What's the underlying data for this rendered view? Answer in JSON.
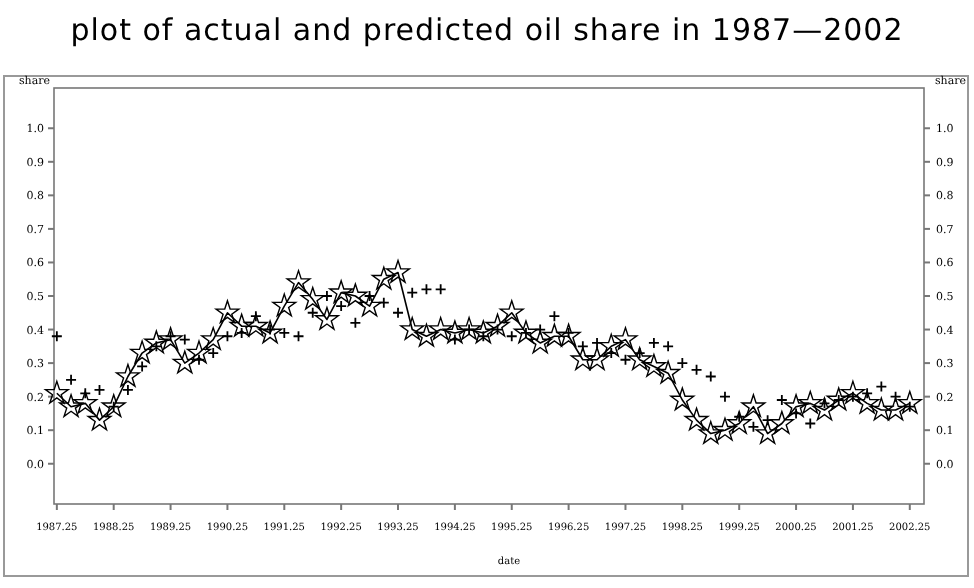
{
  "chart_data": {
    "type": "line",
    "title": "plot of actual and predicted oil share in 1987—2002",
    "xlabel": "date",
    "ylabel": "share",
    "y2label": "share",
    "x": [
      1987.25,
      1987.5,
      1987.75,
      1988,
      1988.25,
      1988.5,
      1988.75,
      1989,
      1989.25,
      1989.5,
      1989.75,
      1990,
      1990.25,
      1990.5,
      1990.75,
      1991,
      1991.25,
      1991.5,
      1991.75,
      1992,
      1992.25,
      1992.5,
      1992.75,
      1993,
      1993.25,
      1993.5,
      1993.75,
      1994,
      1994.25,
      1994.5,
      1994.75,
      1995,
      1995.25,
      1995.5,
      1995.75,
      1996,
      1996.25,
      1996.5,
      1996.75,
      1997,
      1997.25,
      1997.5,
      1997.75,
      1998,
      1998.25,
      1998.5,
      1998.75,
      1999,
      1999.25,
      1999.5,
      1999.75,
      2000,
      2000.25,
      2000.5,
      2000.75,
      2001,
      2001.25,
      2001.5,
      2001.75,
      2002,
      2002.25
    ],
    "series": [
      {
        "type": "line",
        "marker": "star",
        "color": "#000000",
        "values": [
          0.21,
          0.17,
          0.18,
          0.13,
          0.17,
          0.26,
          0.33,
          0.36,
          0.37,
          0.3,
          0.33,
          0.37,
          0.45,
          0.41,
          0.41,
          0.39,
          0.47,
          0.54,
          0.49,
          0.43,
          0.51,
          0.5,
          0.47,
          0.55,
          0.57,
          0.4,
          0.38,
          0.4,
          0.39,
          0.4,
          0.39,
          0.41,
          0.45,
          0.39,
          0.36,
          0.38,
          0.38,
          0.31,
          0.31,
          0.35,
          0.37,
          0.31,
          0.29,
          0.27,
          0.19,
          0.13,
          0.09,
          0.1,
          0.12,
          0.17,
          0.09,
          0.12,
          0.17,
          0.18,
          0.16,
          0.19,
          0.21,
          0.18,
          0.16,
          0.16,
          0.18
        ]
      },
      {
        "type": "scatter",
        "marker": "cross",
        "color": "#000000",
        "values": [
          0.38,
          0.25,
          0.21,
          0.22,
          0.17,
          0.22,
          0.29,
          0.35,
          0.38,
          0.37,
          0.31,
          0.33,
          0.38,
          0.39,
          0.44,
          0.4,
          0.39,
          0.38,
          0.45,
          0.5,
          0.47,
          0.42,
          0.5,
          0.48,
          0.45,
          0.51,
          0.52,
          0.52,
          0.37,
          0.4,
          0.38,
          0.4,
          0.38,
          0.39,
          0.4,
          0.44,
          0.39,
          0.35,
          0.36,
          0.33,
          0.31,
          0.33,
          0.36,
          0.35,
          0.3,
          0.28,
          0.26,
          0.2,
          0.14,
          0.11,
          0.13,
          0.19,
          0.15,
          0.12,
          0.18,
          0.19,
          0.2,
          0.21,
          0.23,
          0.2,
          0.17
        ]
      }
    ],
    "xlim": [
      1987.2,
      2002.5
    ],
    "xticks": [
      1987.25,
      1988.25,
      1989.25,
      1990.25,
      1991.25,
      1992.25,
      1993.25,
      1994.25,
      1995.25,
      1996.25,
      1997.25,
      1998.25,
      1999.25,
      2000.25,
      2001.25,
      2002.25
    ],
    "ylim": [
      -0.12,
      1.12
    ],
    "yticks": [
      {
        "value": 0,
        "label": "0.0"
      },
      0.1,
      0.2,
      0.3,
      0.4,
      0.5,
      0.6,
      0.7,
      0.8,
      0.9,
      {
        "value": 1,
        "label": "1.0"
      }
    ],
    "y2lim": [
      -0.12,
      1.12
    ],
    "y2ticks": [
      {
        "value": 0,
        "label": "0.0"
      },
      0.1,
      0.2,
      0.3,
      0.4,
      0.5,
      0.6,
      0.7,
      0.8,
      0.9,
      {
        "value": 1,
        "label": "1.0"
      }
    ],
    "grid": false
  }
}
